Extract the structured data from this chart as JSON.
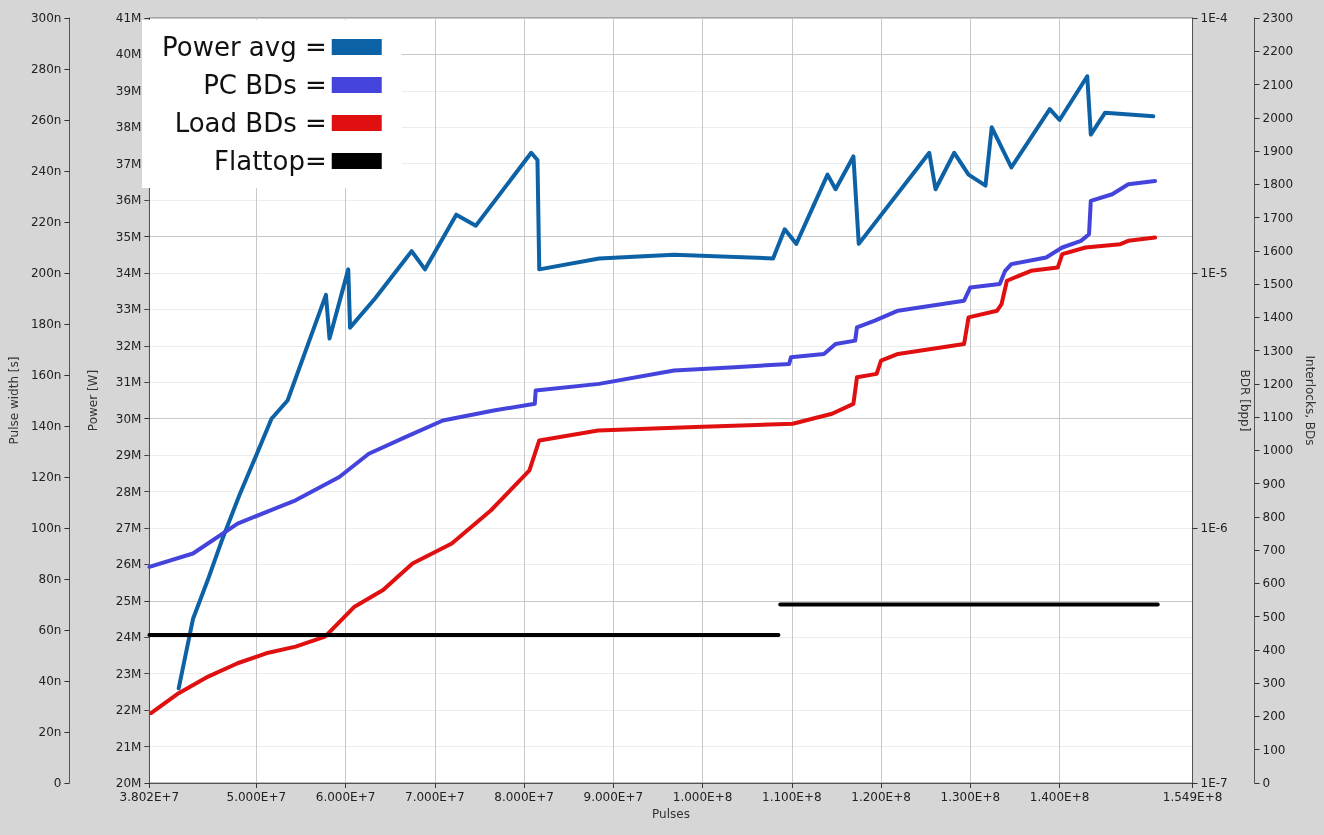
{
  "chart_data": {
    "type": "line",
    "xlabel": "Pulses",
    "ylabel": "Power [W]",
    "y2label": "Interlocks, BDs",
    "y3label": "Pulse width [s]",
    "annotations": [
      "BDR [bpp]",
      "1E-4",
      "1E-5",
      "1E-6",
      "1E-7"
    ],
    "xlim": [
      38020000,
      154900000
    ],
    "xticks": [
      {
        "value": 38020000,
        "label": "3.802E+7"
      },
      {
        "value": 50000000,
        "label": "5.000E+7"
      },
      {
        "value": 60000000,
        "label": "6.000E+7"
      },
      {
        "value": 70000000,
        "label": "7.000E+7"
      },
      {
        "value": 80000000,
        "label": "8.000E+7"
      },
      {
        "value": 90000000,
        "label": "9.000E+7"
      },
      {
        "value": 100000000,
        "label": "1.000E+8"
      },
      {
        "value": 110000000,
        "label": "1.100E+8"
      },
      {
        "value": 120000000,
        "label": "1.200E+8"
      },
      {
        "value": 130000000,
        "label": "1.300E+8"
      },
      {
        "value": 140000000,
        "label": "1.400E+8"
      },
      {
        "value": 154900000,
        "label": "1.549E+8"
      }
    ],
    "ylim": [
      20000000,
      41000000
    ],
    "yticks": [
      {
        "value": 20000000,
        "label": "20M"
      },
      {
        "value": 21000000,
        "label": "21M"
      },
      {
        "value": 22000000,
        "label": "22M"
      },
      {
        "value": 23000000,
        "label": "23M"
      },
      {
        "value": 24000000,
        "label": "24M"
      },
      {
        "value": 25000000,
        "label": "25M"
      },
      {
        "value": 26000000,
        "label": "26M"
      },
      {
        "value": 27000000,
        "label": "27M"
      },
      {
        "value": 28000000,
        "label": "28M"
      },
      {
        "value": 29000000,
        "label": "29M"
      },
      {
        "value": 30000000,
        "label": "30M"
      },
      {
        "value": 31000000,
        "label": "31M"
      },
      {
        "value": 32000000,
        "label": "32M"
      },
      {
        "value": 33000000,
        "label": "33M"
      },
      {
        "value": 34000000,
        "label": "34M"
      },
      {
        "value": 35000000,
        "label": "35M"
      },
      {
        "value": 36000000,
        "label": "36M"
      },
      {
        "value": 37000000,
        "label": "37M"
      },
      {
        "value": 38000000,
        "label": "38M"
      },
      {
        "value": 39000000,
        "label": "39M"
      },
      {
        "value": 40000000,
        "label": "40M"
      },
      {
        "value": 41000000,
        "label": "41M"
      }
    ],
    "y2lim": [
      0,
      2300
    ],
    "y2ticks": [
      0,
      100,
      200,
      300,
      400,
      500,
      600,
      700,
      800,
      900,
      1000,
      1100,
      1200,
      1300,
      1400,
      1500,
      1600,
      1700,
      1800,
      1900,
      2000,
      2100,
      2200,
      2300
    ],
    "y3lim": [
      0,
      300
    ],
    "y3ticks": [
      0,
      {
        "value": 20,
        "label": "20n"
      },
      {
        "value": 40,
        "label": "40n"
      },
      {
        "value": 60,
        "label": "60n"
      },
      {
        "value": 80,
        "label": "80n"
      },
      {
        "value": 100,
        "label": "100n"
      },
      {
        "value": 120,
        "label": "120n"
      },
      {
        "value": 140,
        "label": "140n"
      },
      {
        "value": 160,
        "label": "160n"
      },
      {
        "value": 180,
        "label": "180n"
      },
      {
        "value": 200,
        "label": "200n"
      },
      {
        "value": 220,
        "label": "220n"
      },
      {
        "value": 240,
        "label": "240n"
      },
      {
        "value": 260,
        "label": "260n"
      },
      {
        "value": 280,
        "label": "280n"
      },
      {
        "value": 300,
        "label": "300n"
      }
    ],
    "grid": true,
    "legend": "top left",
    "series": [
      {
        "name": "Power avg =",
        "color": "#0d62a6",
        "axis": "y",
        "x": [
          41300000,
          42900000,
          44600000,
          46200000,
          48100000,
          50000000,
          51700000,
          53500000,
          57800000,
          58200000,
          60300000,
          60500000,
          63300000,
          67400000,
          68900000,
          72400000,
          74600000,
          80800000,
          81500000,
          81700000,
          88400000,
          96800000,
          107900000,
          109200000,
          110500000,
          114000000,
          114900000,
          116900000,
          117500000,
          125400000,
          126100000,
          128200000,
          129800000,
          131700000,
          132400000,
          134600000,
          138900000,
          140000000,
          143100000,
          143500000,
          145100000,
          150500000
        ],
        "values": [
          22600000,
          24500000,
          25600000,
          26700000,
          27900000,
          29000000,
          30000000,
          30500000,
          33400000,
          32200000,
          34100000,
          32500000,
          33300000,
          34600000,
          34100000,
          35600000,
          35300000,
          37300000,
          37100000,
          34100000,
          34400000,
          34500000,
          34400000,
          35200000,
          34800000,
          36700000,
          36300000,
          37200000,
          34800000,
          37300000,
          36300000,
          37300000,
          36700000,
          36400000,
          38000000,
          36900000,
          38500000,
          38200000,
          39400000,
          37800000,
          38400000,
          38300000
        ]
      },
      {
        "name": "PC BDs =",
        "color": "#4444dd",
        "axis": "y2",
        "x": [
          38020000,
          42900000,
          47900000,
          54400000,
          59300000,
          62600000,
          66700000,
          70900000,
          76600000,
          81200000,
          81300000,
          88400000,
          96800000,
          103600000,
          109700000,
          109900000,
          113600000,
          114900000,
          117100000,
          117300000,
          119300000,
          121900000,
          129300000,
          130000000,
          133300000,
          133900000,
          134600000,
          138500000,
          140300000,
          142400000,
          143300000,
          143500000,
          145900000,
          147700000,
          150700000
        ],
        "values": [
          650,
          690,
          780,
          850,
          920,
          990,
          1040,
          1090,
          1120,
          1140,
          1180,
          1200,
          1240,
          1250,
          1260,
          1280,
          1290,
          1320,
          1330,
          1370,
          1390,
          1420,
          1450,
          1490,
          1500,
          1540,
          1560,
          1580,
          1610,
          1630,
          1650,
          1750,
          1770,
          1800,
          1810
        ]
      },
      {
        "name": "Load BDs =",
        "color": "#e01010",
        "axis": "y2",
        "x": [
          38200000,
          41300000,
          44600000,
          47900000,
          51100000,
          54400000,
          57700000,
          61000000,
          64200000,
          67500000,
          71900000,
          76300000,
          80600000,
          81700000,
          88300000,
          99200000,
          110100000,
          114500000,
          116900000,
          117300000,
          119500000,
          120000000,
          121900000,
          129300000,
          129800000,
          133000000,
          133500000,
          134100000,
          136800000,
          139800000,
          140300000,
          142900000,
          146800000,
          147700000,
          150700000
        ],
        "values": [
          210,
          270,
          320,
          360,
          390,
          410,
          440,
          530,
          580,
          660,
          720,
          820,
          940,
          1030,
          1060,
          1070,
          1080,
          1110,
          1140,
          1220,
          1230,
          1270,
          1290,
          1320,
          1400,
          1420,
          1440,
          1510,
          1540,
          1550,
          1590,
          1610,
          1620,
          1630,
          1640
        ]
      },
      {
        "name": "Flattop=",
        "color": "#000000",
        "axis": "y3",
        "x": [
          38020000,
          108500000,
          108600000,
          108700000,
          151000000
        ],
        "values": [
          58,
          58,
          null,
          70,
          70
        ]
      }
    ]
  }
}
